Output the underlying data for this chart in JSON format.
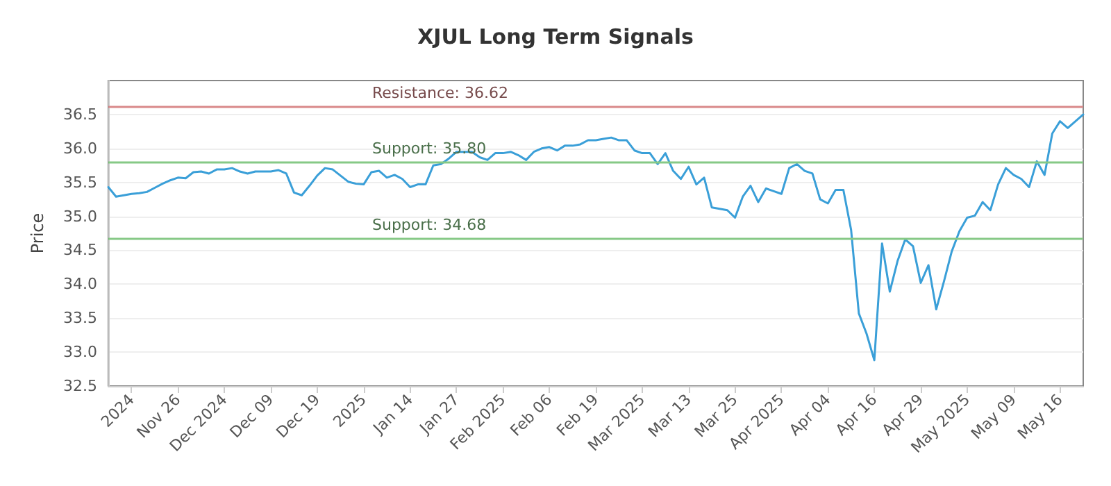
{
  "chart_data": {
    "type": "line",
    "title": "XJUL Long Term Signals",
    "ylabel": "Price",
    "categories": [
      null,
      null,
      null,
      "2024",
      null,
      null,
      null,
      null,
      null,
      "Nov 26",
      null,
      null,
      null,
      null,
      null,
      "Dec 2024",
      null,
      null,
      null,
      null,
      null,
      "Dec 09",
      null,
      null,
      null,
      null,
      null,
      "Dec 19",
      null,
      null,
      null,
      null,
      null,
      "2025",
      null,
      null,
      null,
      null,
      null,
      "Jan 14",
      null,
      null,
      null,
      null,
      null,
      "Jan 27",
      null,
      null,
      null,
      null,
      null,
      "Feb 2025",
      null,
      null,
      null,
      null,
      null,
      "Feb 06",
      null,
      null,
      null,
      null,
      null,
      "Feb 19",
      null,
      null,
      null,
      null,
      null,
      "Mar 2025",
      null,
      null,
      null,
      null,
      null,
      "Mar 13",
      null,
      null,
      null,
      null,
      null,
      "Mar 25",
      null,
      null,
      null,
      null,
      null,
      "Apr 2025",
      null,
      null,
      null,
      null,
      null,
      "Apr 04",
      null,
      null,
      null,
      null,
      null,
      "Apr 16",
      null,
      null,
      null,
      null,
      null,
      "Apr 29",
      null,
      null,
      null,
      null,
      null,
      "May 2025",
      null,
      null,
      null,
      null,
      null,
      "May 09",
      null,
      null,
      null,
      null,
      null,
      "May 16",
      null,
      null,
      null
    ],
    "series": [
      {
        "color": "#3a9fd8",
        "values": [
          35.43,
          35.29,
          35.31,
          35.33,
          35.34,
          35.36,
          35.42,
          35.48,
          35.53,
          35.57,
          35.56,
          35.65,
          35.66,
          35.63,
          35.69,
          35.69,
          35.71,
          35.66,
          35.63,
          35.66,
          35.66,
          35.66,
          35.68,
          35.63,
          35.35,
          35.31,
          35.45,
          35.6,
          35.71,
          35.69,
          35.6,
          35.51,
          35.48,
          35.47,
          35.65,
          35.67,
          35.57,
          35.61,
          35.55,
          35.43,
          35.47,
          35.47,
          35.75,
          35.77,
          35.85,
          35.95,
          35.95,
          35.95,
          35.87,
          35.83,
          35.93,
          35.93,
          35.95,
          35.9,
          35.83,
          35.95,
          36.0,
          36.02,
          35.97,
          36.04,
          36.04,
          36.06,
          36.12,
          36.12,
          36.14,
          36.16,
          36.12,
          36.12,
          35.97,
          35.93,
          35.93,
          35.77,
          35.93,
          35.67,
          35.55,
          35.73,
          35.47,
          35.57,
          35.13,
          35.11,
          35.09,
          34.98,
          35.29,
          35.45,
          35.21,
          35.41,
          35.37,
          35.33,
          35.71,
          35.77,
          35.67,
          35.63,
          35.25,
          35.19,
          35.39,
          35.39,
          34.8,
          33.57,
          33.27,
          32.88,
          34.6,
          33.89,
          34.34,
          34.66,
          34.56,
          34.02,
          34.28,
          33.63,
          34.04,
          34.48,
          34.78,
          34.98,
          35.01,
          35.21,
          35.09,
          35.47,
          35.71,
          35.61,
          35.55,
          35.43,
          35.81,
          35.61,
          36.22,
          36.4,
          36.3,
          36.4,
          36.5
        ]
      }
    ],
    "ylim": [
      32.5,
      37.0
    ],
    "yticks": [
      32.5,
      {
        "value": 33,
        "label": "33.0"
      },
      33.5,
      {
        "value": 34,
        "label": "34.0"
      },
      34.5,
      {
        "value": 35,
        "label": "35.0"
      },
      35.5,
      {
        "value": 36,
        "label": "36.0"
      },
      36.5
    ],
    "ref_lines": [
      {
        "axis": "y",
        "value": 36.62,
        "label": "Resistance: 36.62",
        "color": "#d9898a"
      },
      {
        "axis": "y",
        "value": 35.8,
        "label": "Support: 35.80",
        "color": "#86c986"
      },
      {
        "axis": "y",
        "value": 34.68,
        "label": "Support: 34.68",
        "color": "#86c986"
      }
    ],
    "grid": "y",
    "marker": "none",
    "line_style": "solid"
  }
}
